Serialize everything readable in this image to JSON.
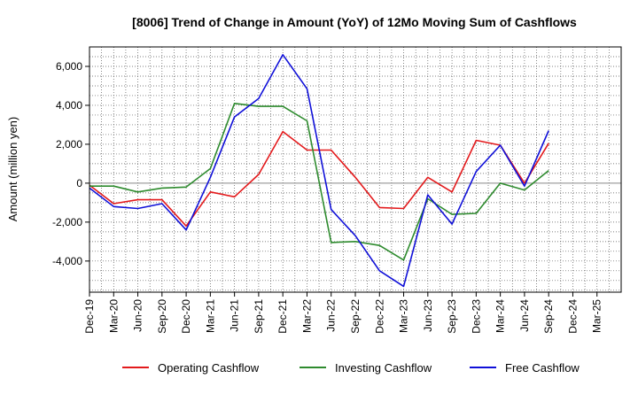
{
  "chart_data": {
    "type": "line",
    "title": "[8006]  Trend of Change in Amount (YoY) of 12Mo Moving Sum of Cashflows",
    "xlabel": "",
    "ylabel": "Amount (million yen)",
    "ylim": [
      -5600,
      7000
    ],
    "yticks": [
      -4000,
      -2000,
      0,
      2000,
      4000,
      6000
    ],
    "ytick_labels": [
      "-4,000",
      "-2,000",
      "0",
      "2,000",
      "4,000",
      "6,000"
    ],
    "grid": true,
    "legend_position": "bottom",
    "categories": [
      "Dec-19",
      "Mar-20",
      "Jun-20",
      "Sep-20",
      "Dec-20",
      "Mar-21",
      "Jun-21",
      "Sep-21",
      "Dec-21",
      "Mar-22",
      "Jun-22",
      "Sep-22",
      "Dec-22",
      "Mar-23",
      "Jun-23",
      "Sep-23",
      "Dec-23",
      "Mar-24",
      "Jun-24",
      "Sep-24",
      "Dec-24",
      "Mar-25"
    ],
    "series": [
      {
        "name": "Operating Cashflow",
        "color": "#e31a1c",
        "values": [
          -100,
          -1050,
          -850,
          -850,
          -2200,
          -450,
          -700,
          450,
          2650,
          1700,
          1700,
          300,
          -1250,
          -1300,
          300,
          -450,
          2200,
          1950,
          0,
          2050,
          null,
          null
        ]
      },
      {
        "name": "Investing Cashflow",
        "color": "#2e8b2e",
        "values": [
          -150,
          -150,
          -450,
          -250,
          -200,
          750,
          4100,
          3950,
          3950,
          3200,
          -3050,
          -3000,
          -3200,
          -3950,
          -800,
          -1600,
          -1550,
          0,
          -350,
          650,
          null,
          null
        ]
      },
      {
        "name": "Free Cashflow",
        "color": "#1010d8",
        "values": [
          -250,
          -1200,
          -1300,
          -1050,
          -2400,
          300,
          3400,
          4350,
          6600,
          4850,
          -1350,
          -2700,
          -4500,
          -5300,
          -600,
          -2100,
          600,
          1950,
          -150,
          2700,
          null,
          null
        ]
      }
    ]
  }
}
